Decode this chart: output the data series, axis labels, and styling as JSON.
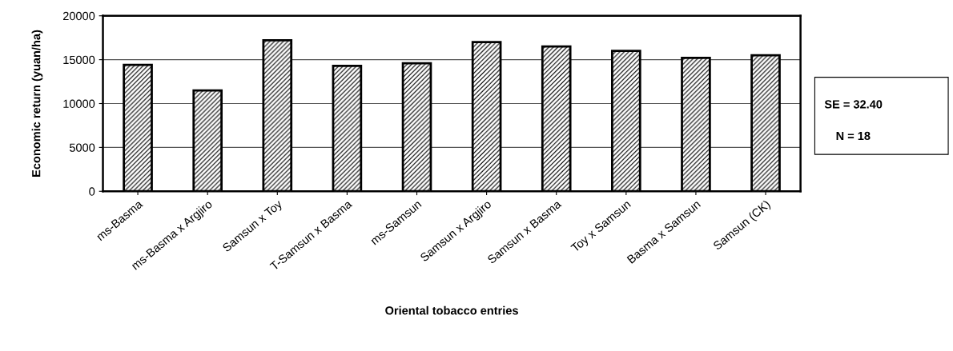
{
  "chart_data": {
    "type": "bar",
    "xlabel": "Oriental tobacco entries",
    "ylabel": "Economic return (yuan/ha)",
    "categories": [
      "ms-Basma",
      "ms-Basma x Argjiro",
      "Samsun x Toy",
      "T-Samsun x Basma",
      "ms-Samsun",
      "Samsun x Argjiro",
      "Samsun x Basma",
      "Toy x Samsun",
      "Basma x Samsun",
      "Samsun (CK)"
    ],
    "values": [
      14400,
      11500,
      17200,
      14300,
      14600,
      17000,
      16500,
      16000,
      15200,
      15500
    ],
    "color": "#000000",
    "ylim": [
      0,
      20000
    ],
    "yticks": [
      0,
      5000,
      10000,
      15000,
      20000
    ],
    "grid": "y",
    "annotations": [
      "SE = 32.40",
      "N = 18"
    ]
  }
}
